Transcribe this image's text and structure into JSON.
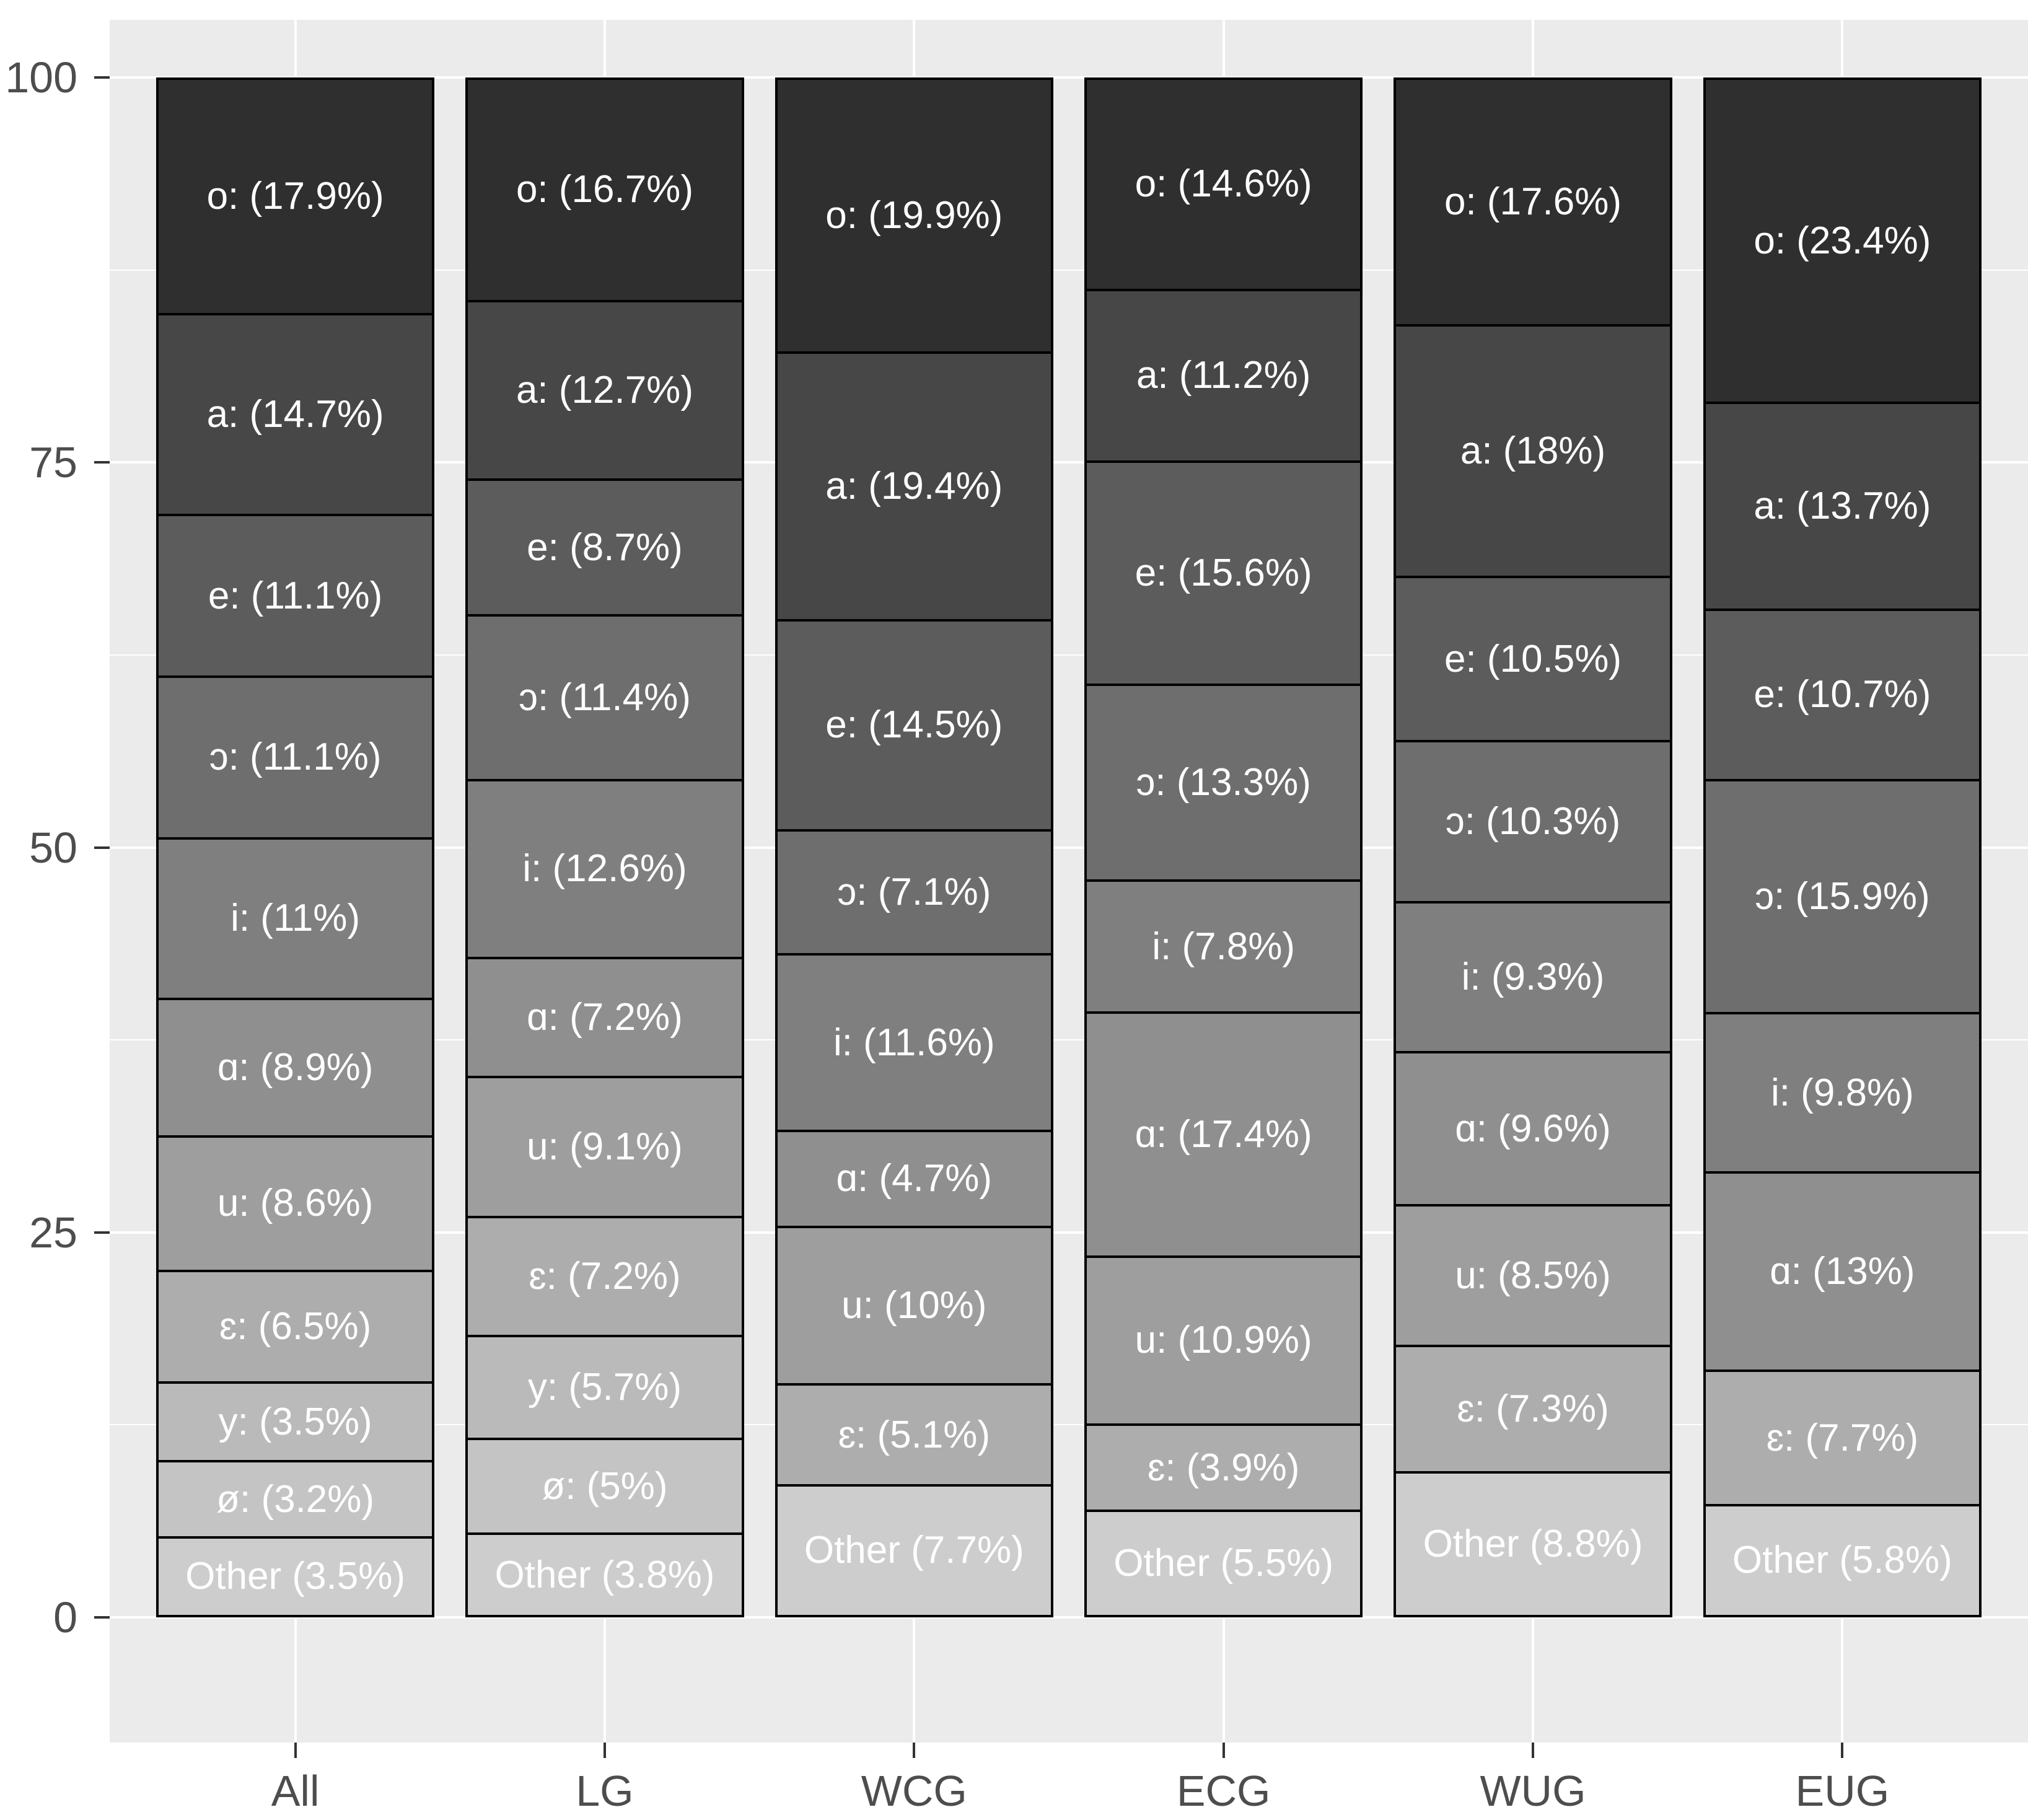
{
  "palette": {
    "page_background": "#ffffff",
    "panel_background": "#ebebeb",
    "grid_major": "#ffffff",
    "grid_minor": "#f8f8f8",
    "bar_border": "#000000",
    "segment_label_text": "#ffffff",
    "axis_text": "#4d4d4d",
    "tick_mark": "#333333"
  },
  "chart_data": {
    "type": "bar",
    "subtype": "stacked-percentage",
    "title": "",
    "xlabel": "",
    "ylabel": "",
    "ylim": [
      0,
      100
    ],
    "grid": true,
    "legend_position": "none",
    "y_ticks": [
      "0",
      "25",
      "50",
      "75",
      "100"
    ],
    "y_tick_values": [
      0,
      25,
      50,
      75,
      100
    ],
    "y_minor_tick_values": [
      12.5,
      37.5,
      62.5,
      87.5
    ],
    "categories": [
      "All",
      "LG",
      "WCG",
      "ECG",
      "WUG",
      "EUG"
    ],
    "vowel_order": [
      "o:",
      "a:",
      "e:",
      "ɔ:",
      "i:",
      "ɑ:",
      "u:",
      "ɛ:",
      "y:",
      "ø:",
      "Other"
    ],
    "vowel_colors": {
      "o:": "#2f2f2f",
      "a:": "#474747",
      "e:": "#5c5c5c",
      "ɔ:": "#6e6e6e",
      "i:": "#7f7f7f",
      "ɑ:": "#8f8f8f",
      "u:": "#9e9e9e",
      "ɛ:": "#adadad",
      "y:": "#bababa",
      "ø:": "#c4c4c4",
      "Other": "#cdcdcd"
    },
    "groups": [
      {
        "category": "All",
        "segments": [
          {
            "vowel": "o:",
            "value": 17.9,
            "label": "o: (17.9%)"
          },
          {
            "vowel": "a:",
            "value": 14.7,
            "label": "a: (14.7%)"
          },
          {
            "vowel": "e:",
            "value": 11.1,
            "label": "e: (11.1%)"
          },
          {
            "vowel": "ɔ:",
            "value": 11.1,
            "label": "ɔ: (11.1%)"
          },
          {
            "vowel": "i:",
            "value": 11.0,
            "label": "i: (11%)"
          },
          {
            "vowel": "ɑ:",
            "value": 8.9,
            "label": "ɑ: (8.9%)"
          },
          {
            "vowel": "u:",
            "value": 8.6,
            "label": "u: (8.6%)"
          },
          {
            "vowel": "ɛ:",
            "value": 6.5,
            "label": "ɛ: (6.5%)"
          },
          {
            "vowel": "y:",
            "value": 3.5,
            "label": "y: (3.5%)"
          },
          {
            "vowel": "ø:",
            "value": 3.2,
            "label": "ø: (3.2%)"
          },
          {
            "vowel": "Other",
            "value": 3.5,
            "label": "Other (3.5%)"
          }
        ]
      },
      {
        "category": "LG",
        "segments": [
          {
            "vowel": "o:",
            "value": 16.7,
            "label": "o: (16.7%)"
          },
          {
            "vowel": "a:",
            "value": 12.7,
            "label": "a: (12.7%)"
          },
          {
            "vowel": "e:",
            "value": 8.7,
            "label": "e: (8.7%)"
          },
          {
            "vowel": "ɔ:",
            "value": 11.4,
            "label": "ɔ: (11.4%)"
          },
          {
            "vowel": "i:",
            "value": 12.6,
            "label": "i: (12.6%)"
          },
          {
            "vowel": "ɑ:",
            "value": 7.2,
            "label": "ɑ: (7.2%)"
          },
          {
            "vowel": "u:",
            "value": 9.1,
            "label": "u: (9.1%)"
          },
          {
            "vowel": "ɛ:",
            "value": 7.2,
            "label": "ɛ: (7.2%)"
          },
          {
            "vowel": "y:",
            "value": 5.7,
            "label": "y: (5.7%)"
          },
          {
            "vowel": "ø:",
            "value": 5.0,
            "label": "ø: (5%)"
          },
          {
            "vowel": "Other",
            "value": 3.8,
            "label": "Other (3.8%)"
          }
        ]
      },
      {
        "category": "WCG",
        "segments": [
          {
            "vowel": "o:",
            "value": 19.9,
            "label": "o: (19.9%)"
          },
          {
            "vowel": "a:",
            "value": 19.4,
            "label": "a: (19.4%)"
          },
          {
            "vowel": "e:",
            "value": 14.5,
            "label": "e: (14.5%)"
          },
          {
            "vowel": "ɔ:",
            "value": 7.1,
            "label": "ɔ: (7.1%)"
          },
          {
            "vowel": "i:",
            "value": 11.6,
            "label": "i: (11.6%)"
          },
          {
            "vowel": "ɑ:",
            "value": 4.7,
            "label": "ɑ: (4.7%)"
          },
          {
            "vowel": "u:",
            "value": 10.0,
            "label": "u: (10%)"
          },
          {
            "vowel": "ɛ:",
            "value": 5.1,
            "label": "ɛ: (5.1%)"
          },
          {
            "vowel": "Other",
            "value": 7.7,
            "label": "Other (7.7%)"
          }
        ]
      },
      {
        "category": "ECG",
        "segments": [
          {
            "vowel": "o:",
            "value": 14.6,
            "label": "o: (14.6%)"
          },
          {
            "vowel": "a:",
            "value": 11.2,
            "label": "a: (11.2%)"
          },
          {
            "vowel": "e:",
            "value": 15.6,
            "label": "e: (15.6%)"
          },
          {
            "vowel": "ɔ:",
            "value": 13.3,
            "label": "ɔ: (13.3%)"
          },
          {
            "vowel": "i:",
            "value": 7.8,
            "label": "i: (7.8%)"
          },
          {
            "vowel": "ɑ:",
            "value": 17.4,
            "label": "ɑ: (17.4%)"
          },
          {
            "vowel": "u:",
            "value": 10.9,
            "label": "u: (10.9%)"
          },
          {
            "vowel": "ɛ:",
            "value": 3.9,
            "label": "ɛ: (3.9%)"
          },
          {
            "vowel": "Other",
            "value": 5.5,
            "label": "Other (5.5%)"
          }
        ]
      },
      {
        "category": "WUG",
        "segments": [
          {
            "vowel": "o:",
            "value": 17.6,
            "label": "o: (17.6%)"
          },
          {
            "vowel": "a:",
            "value": 18.0,
            "label": "a: (18%)"
          },
          {
            "vowel": "e:",
            "value": 10.5,
            "label": "e: (10.5%)"
          },
          {
            "vowel": "ɔ:",
            "value": 10.3,
            "label": "ɔ: (10.3%)"
          },
          {
            "vowel": "i:",
            "value": 9.3,
            "label": "i: (9.3%)"
          },
          {
            "vowel": "ɑ:",
            "value": 9.6,
            "label": "ɑ: (9.6%)"
          },
          {
            "vowel": "u:",
            "value": 8.5,
            "label": "u: (8.5%)"
          },
          {
            "vowel": "ɛ:",
            "value": 7.3,
            "label": "ɛ: (7.3%)"
          },
          {
            "vowel": "Other",
            "value": 8.8,
            "label": "Other (8.8%)"
          }
        ]
      },
      {
        "category": "EUG",
        "segments": [
          {
            "vowel": "o:",
            "value": 23.4,
            "label": "o: (23.4%)"
          },
          {
            "vowel": "a:",
            "value": 13.7,
            "label": "a: (13.7%)"
          },
          {
            "vowel": "e:",
            "value": 10.7,
            "label": "e: (10.7%)"
          },
          {
            "vowel": "ɔ:",
            "value": 15.9,
            "label": "ɔ: (15.9%)"
          },
          {
            "vowel": "i:",
            "value": 9.8,
            "label": "i: (9.8%)"
          },
          {
            "vowel": "ɑ:",
            "value": 13.0,
            "label": "ɑ: (13%)"
          },
          {
            "vowel": "ɛ:",
            "value": 7.7,
            "label": "ɛ: (7.7%)"
          },
          {
            "vowel": "Other",
            "value": 5.8,
            "label": "Other (5.8%)"
          }
        ]
      }
    ]
  }
}
